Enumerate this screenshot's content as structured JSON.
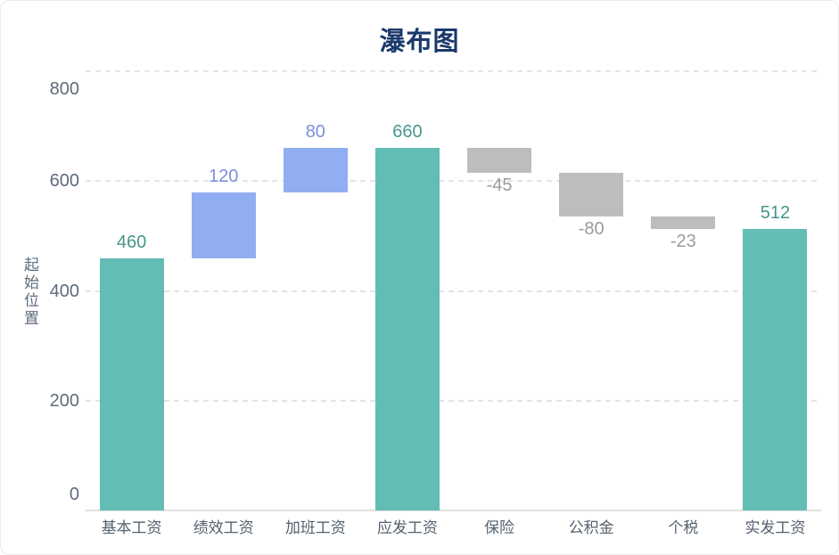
{
  "title": "瀑布图",
  "colors": {
    "bar_total_teal": "#62bdb5",
    "bar_increase_blue": "#92aef2",
    "bar_decrease_gray": "#bdbdbd",
    "label_teal": "#47968c",
    "label_blue": "#7b8fdf",
    "label_gray": "#9b9b9b",
    "title_color": "#1b3a6b",
    "y_tick_color": "#5e6b7c",
    "x_label_color": "#54616f",
    "grid_color": "#e4e4e4",
    "axis_line_color": "#e0e0e0"
  },
  "chart_data": {
    "type": "bar",
    "subtype": "waterfall",
    "title": "瀑布图",
    "xlabel": "",
    "ylabel": "起始位置",
    "ylim": [
      0,
      800
    ],
    "y_ticks": [
      0,
      200,
      400,
      600,
      800
    ],
    "grid": "horizontal dashed",
    "legend": "none",
    "categories": [
      "基本工资",
      "绩效工资",
      "加班工资",
      "应发工资",
      "保险",
      "公积金",
      "个税",
      "实发工资"
    ],
    "values": [
      460,
      120,
      80,
      660,
      -45,
      -80,
      -23,
      512
    ],
    "segments": [
      {
        "category": "基本工资",
        "start": 0,
        "end": 460,
        "label": "460",
        "role": "total"
      },
      {
        "category": "绩效工资",
        "start": 460,
        "end": 580,
        "label": "120",
        "role": "increase"
      },
      {
        "category": "加班工资",
        "start": 580,
        "end": 660,
        "label": "80",
        "role": "increase"
      },
      {
        "category": "应发工资",
        "start": 0,
        "end": 660,
        "label": "660",
        "role": "total"
      },
      {
        "category": "保险",
        "start": 615,
        "end": 660,
        "label": "-45",
        "role": "decrease"
      },
      {
        "category": "公积金",
        "start": 535,
        "end": 615,
        "label": "-80",
        "role": "decrease"
      },
      {
        "category": "个税",
        "start": 512,
        "end": 535,
        "label": "-23",
        "role": "decrease"
      },
      {
        "category": "实发工资",
        "start": 0,
        "end": 512,
        "label": "512",
        "role": "total"
      }
    ]
  }
}
